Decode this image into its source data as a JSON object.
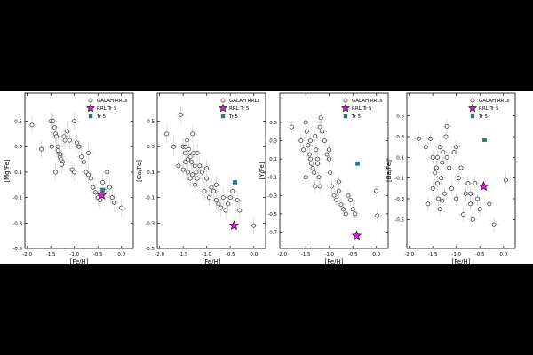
{
  "chart_data": [
    {
      "type": "scatter",
      "xlabel": "[Fe/H]",
      "ylabel": "[Mg/Fe]",
      "xlim": [
        -2.05,
        0.25
      ],
      "ylim": [
        -0.5,
        0.72
      ],
      "xticks": [
        -2.0,
        -1.5,
        -1.0,
        -0.5,
        0.0
      ],
      "xtick_labels": [
        "-2.0",
        "-1.5",
        "-1.0",
        "-0.5",
        "0.0"
      ],
      "yticks": [
        0.5,
        0.3,
        0.1,
        -0.1,
        -0.3,
        -0.5
      ],
      "ytick_labels": [
        "0.5",
        "0.3",
        "0.1",
        "-0.1",
        "-0.3",
        "-0.5"
      ],
      "legend": [
        "GALAH RRLs",
        "RRL Tr 5",
        "Tr 5"
      ],
      "legend_position": "top-right",
      "series": [
        {
          "name": "GALAH RRLs",
          "marker": "open-hexagon",
          "x": [
            -1.9,
            -1.7,
            -1.5,
            -1.45,
            -1.42,
            -1.4,
            -1.38,
            -1.35,
            -1.33,
            -1.3,
            -1.28,
            -1.25,
            -1.22,
            -1.2,
            -1.48,
            -1.35,
            -1.3,
            -1.27,
            -1.4,
            -1.05,
            -1.0,
            -0.95,
            -0.9,
            -0.85,
            -0.8,
            -0.75,
            -0.7,
            -0.65,
            -0.6,
            -0.55,
            -0.5,
            -0.45,
            -0.4,
            -0.35,
            -0.3,
            -0.25,
            -0.2,
            -0.15,
            0.0,
            -1.15,
            -1.1,
            -1.0,
            -0.7
          ],
          "y": [
            0.47,
            0.28,
            0.5,
            0.5,
            0.45,
            0.4,
            0.38,
            0.3,
            0.25,
            0.22,
            0.2,
            0.18,
            0.38,
            0.35,
            0.3,
            0.27,
            0.24,
            0.16,
            0.1,
            0.12,
            0.5,
            0.33,
            0.3,
            0.22,
            0.18,
            0.1,
            0.08,
            0.05,
            -0.02,
            -0.06,
            -0.1,
            -0.12,
            0.02,
            -0.05,
            0.1,
            -0.02,
            -0.1,
            -0.14,
            -0.18,
            0.42,
            0.35,
            0.1,
            0.25
          ]
        },
        {
          "name": "RRL Tr 5",
          "marker": "magenta-star",
          "x": [
            -0.42
          ],
          "y": [
            -0.08
          ]
        },
        {
          "name": "Tr 5",
          "marker": "teal-square",
          "x": [
            -0.4
          ],
          "y": [
            -0.04
          ]
        }
      ]
    },
    {
      "type": "scatter",
      "xlabel": "[Fe/H]",
      "ylabel": "[Ca/Fe]",
      "xlim": [
        -2.05,
        0.25
      ],
      "ylim": [
        -0.5,
        0.72
      ],
      "xticks": [
        -2.0,
        -1.5,
        -1.0,
        -0.5,
        0.0
      ],
      "xtick_labels": [
        "-2.0",
        "-1.5",
        "-1.0",
        "-0.5",
        "0.0"
      ],
      "yticks": [
        0.5,
        0.3,
        0.1,
        -0.1,
        -0.3,
        -0.5
      ],
      "ytick_labels": [
        "0.5",
        "0.3",
        "0.1",
        "-0.1",
        "-0.3",
        "-0.5"
      ],
      "legend": [
        "GALAH RRLs",
        "RRL Tr 5",
        "Tr 5"
      ],
      "legend_position": "top-right",
      "series": [
        {
          "name": "GALAH RRLs",
          "marker": "open-hexagon",
          "x": [
            -1.85,
            -1.7,
            -1.55,
            -1.5,
            -1.45,
            -1.42,
            -1.4,
            -1.38,
            -1.35,
            -1.32,
            -1.3,
            -1.28,
            -1.25,
            -1.22,
            -1.2,
            -1.6,
            -1.5,
            -1.45,
            -1.4,
            -1.35,
            -1.3,
            -1.25,
            -1.15,
            -1.1,
            -1.05,
            -1.0,
            -0.95,
            -0.9,
            -0.85,
            -0.8,
            -0.75,
            -0.7,
            -0.65,
            -0.6,
            -0.55,
            -0.5,
            -0.45,
            -0.35,
            -0.3,
            0.0,
            -1.45,
            -1.2,
            -1.0,
            -0.8
          ],
          "y": [
            0.4,
            0.3,
            0.55,
            0.3,
            0.25,
            0.35,
            0.2,
            0.28,
            0.22,
            0.18,
            0.4,
            0.25,
            0.15,
            0.1,
            0.05,
            0.15,
            0.12,
            0.18,
            0.1,
            0.05,
            0.08,
            0.0,
            0.15,
            0.1,
            -0.05,
            0.05,
            -0.1,
            -0.02,
            -0.05,
            -0.12,
            -0.15,
            -0.18,
            -0.1,
            -0.2,
            -0.15,
            -0.1,
            -0.05,
            -0.12,
            -0.2,
            -0.32,
            0.3,
            0.25,
            0.13,
            0.0
          ]
        },
        {
          "name": "RRL Tr 5",
          "marker": "magenta-star",
          "x": [
            -0.42
          ],
          "y": [
            -0.32
          ]
        },
        {
          "name": "Tr 5",
          "marker": "teal-square",
          "x": [
            -0.4
          ],
          "y": [
            0.02
          ]
        }
      ]
    },
    {
      "type": "scatter",
      "xlabel": "[Fe/H]",
      "ylabel": "[Y/Fe]",
      "xlim": [
        -2.05,
        0.25
      ],
      "ylim": [
        -0.88,
        0.82
      ],
      "xticks": [
        -2.0,
        -1.5,
        -1.0,
        -0.5,
        0.0
      ],
      "xtick_labels": [
        "-2.0",
        "-1.5",
        "-1.0",
        "-0.5",
        "0.0"
      ],
      "yticks": [
        0.5,
        0.3,
        0.1,
        -0.1,
        -0.3,
        -0.5,
        -0.7
      ],
      "ytick_labels": [
        "0.5",
        "0.3",
        "0.1",
        "-0.1",
        "-0.3",
        "-0.5",
        "-0.7"
      ],
      "legend": [
        "GALAH RRLs",
        "RRL Tr 5",
        "Tr 5"
      ],
      "legend_position": "top-right",
      "series": [
        {
          "name": "GALAH RRLs",
          "marker": "open-hexagon",
          "x": [
            -1.8,
            -1.6,
            -1.55,
            -1.5,
            -1.48,
            -1.45,
            -1.42,
            -1.4,
            -1.38,
            -1.35,
            -1.32,
            -1.3,
            -1.28,
            -1.25,
            -1.22,
            -1.2,
            -1.18,
            -1.15,
            -1.1,
            -1.05,
            -1.0,
            -0.98,
            -0.95,
            -0.9,
            -0.85,
            -0.8,
            -0.75,
            -0.7,
            -0.65,
            -0.6,
            -0.55,
            -0.5,
            -0.45,
            -1.5,
            -1.3,
            -1.25,
            0.0,
            0.02,
            -1.2,
            -1.0,
            -0.8,
            -1.4
          ],
          "y": [
            0.45,
            0.3,
            0.2,
            0.5,
            0.4,
            0.25,
            0.15,
            0.1,
            0.05,
            0.0,
            -0.05,
            0.35,
            0.2,
            0.1,
            -0.1,
            -0.2,
            0.55,
            0.4,
            0.3,
            0.15,
            0.1,
            -0.05,
            -0.2,
            -0.3,
            -0.35,
            -0.25,
            -0.4,
            -0.45,
            -0.5,
            -0.3,
            -0.35,
            -0.45,
            -0.5,
            -0.1,
            -0.2,
            0.05,
            -0.25,
            -0.52,
            0.45,
            0.2,
            -0.15,
            0.3
          ]
        },
        {
          "name": "RRL Tr 5",
          "marker": "magenta-star",
          "x": [
            -0.42
          ],
          "y": [
            -0.74
          ]
        },
        {
          "name": "Tr 5",
          "marker": "teal-square",
          "x": [
            -0.4
          ],
          "y": [
            0.05
          ]
        }
      ]
    },
    {
      "type": "scatter",
      "xlabel": "[Fe/H]",
      "ylabel": "[Ba/Fe]",
      "xlim": [
        -2.05,
        0.25
      ],
      "ylim": [
        -0.78,
        0.72
      ],
      "xticks": [
        -2.0,
        -1.5,
        -1.0,
        -0.5,
        0.0
      ],
      "xtick_labels": [
        "-2.0",
        "-1.5",
        "-1.0",
        "-0.5",
        "0.0"
      ],
      "yticks": [
        0.5,
        0.3,
        0.1,
        -0.1,
        -0.3,
        -0.5
      ],
      "ytick_labels": [
        "0.5",
        "0.3",
        "0.1",
        "-0.1",
        "-0.3",
        "-0.5"
      ],
      "legend": [
        "GALAH RRLs",
        "RRL Tr 5",
        "Tr 5"
      ],
      "legend_position": "top-right",
      "series": [
        {
          "name": "GALAH RRLs",
          "marker": "open-hexagon",
          "x": [
            -1.8,
            -1.65,
            -1.6,
            -1.55,
            -1.5,
            -1.45,
            -1.42,
            -1.4,
            -1.38,
            -1.35,
            -1.32,
            -1.3,
            -1.28,
            -1.25,
            -1.22,
            -1.2,
            -1.15,
            -1.1,
            -1.05,
            -1.0,
            -0.95,
            -0.9,
            -0.85,
            -0.8,
            -0.75,
            -0.7,
            -0.65,
            -0.6,
            -0.55,
            -0.5,
            -0.3,
            -0.2,
            0.05,
            -1.5,
            -1.4,
            -1.3,
            -1.2,
            -1.0,
            -0.7,
            -1.35
          ],
          "y": [
            0.28,
            0.2,
            -0.35,
            0.28,
            0.1,
            -0.05,
            0.0,
            -0.15,
            -0.3,
            0.2,
            -0.1,
            0.05,
            0.15,
            -0.25,
            0.3,
            0.1,
            0.0,
            -0.2,
            0.15,
            -0.3,
            -0.1,
            0.0,
            -0.45,
            -0.25,
            -0.15,
            -0.35,
            -0.5,
            -0.15,
            -0.3,
            -0.4,
            -0.35,
            -0.55,
            -0.12,
            -0.2,
            0.1,
            -0.32,
            0.4,
            0.2,
            -0.25,
            -0.4
          ]
        },
        {
          "name": "RRL Tr 5",
          "marker": "magenta-star",
          "x": [
            -0.42
          ],
          "y": [
            -0.18
          ]
        },
        {
          "name": "Tr 5",
          "marker": "teal-square",
          "x": [
            -0.4
          ],
          "y": [
            0.27
          ]
        }
      ]
    }
  ],
  "colors": {
    "star": "#e01ce0",
    "square": "#1d7f80",
    "errorbar": "#c8c8c8"
  }
}
